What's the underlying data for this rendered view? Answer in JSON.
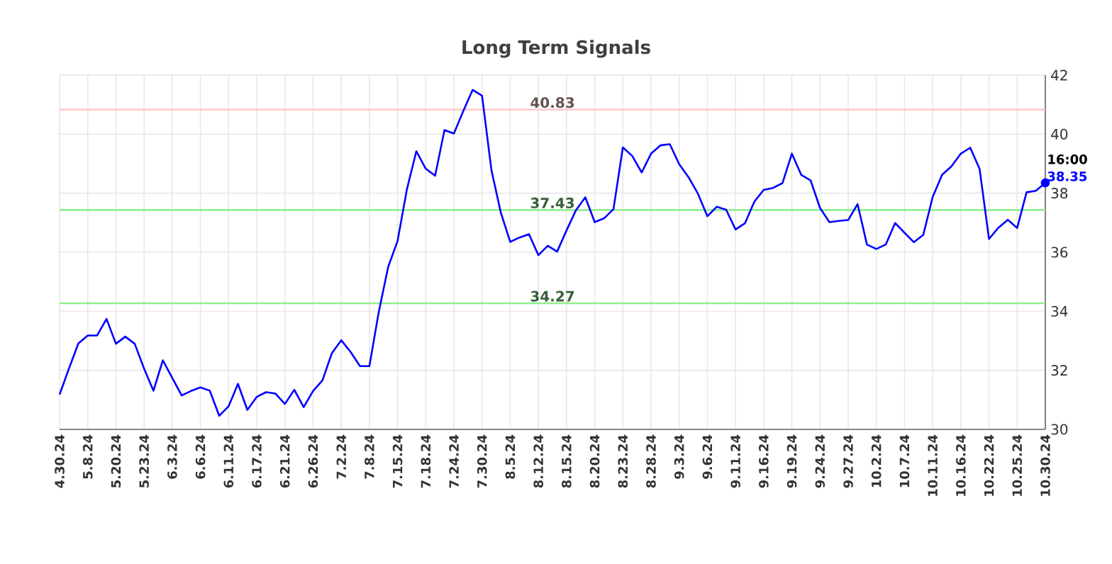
{
  "chart_data": {
    "type": "line",
    "title": "Long Term Signals",
    "categories": [
      "4.30.24",
      null,
      null,
      "5.8.24",
      null,
      null,
      "5.20.24",
      null,
      null,
      "5.23.24",
      null,
      null,
      "6.3.24",
      null,
      null,
      "6.6.24",
      null,
      null,
      "6.11.24",
      null,
      null,
      "6.17.24",
      null,
      null,
      "6.21.24",
      null,
      null,
      "6.26.24",
      null,
      null,
      "7.2.24",
      null,
      null,
      "7.8.24",
      null,
      null,
      "7.15.24",
      null,
      null,
      "7.18.24",
      null,
      null,
      "7.24.24",
      null,
      null,
      "7.30.24",
      null,
      null,
      "8.5.24",
      null,
      null,
      "8.12.24",
      null,
      null,
      "8.15.24",
      null,
      null,
      "8.20.24",
      null,
      null,
      "8.23.24",
      null,
      null,
      "8.28.24",
      null,
      null,
      "9.3.24",
      null,
      null,
      "9.6.24",
      null,
      null,
      "9.11.24",
      null,
      null,
      "9.16.24",
      null,
      null,
      "9.19.24",
      null,
      null,
      "9.24.24",
      null,
      null,
      "9.27.24",
      null,
      null,
      "10.2.24",
      null,
      null,
      "10.7.24",
      null,
      null,
      "10.11.24",
      null,
      null,
      "10.16.24",
      null,
      null,
      "10.22.24",
      null,
      null,
      "10.25.24",
      null,
      null,
      "10.30.24"
    ],
    "series": [
      {
        "color": "#0000ff",
        "values": [
          31.18,
          32.06,
          32.91,
          33.18,
          33.18,
          33.74,
          32.9,
          33.14,
          32.9,
          32.06,
          31.31,
          32.34,
          31.74,
          31.15,
          31.3,
          31.42,
          31.31,
          30.46,
          30.78,
          31.54,
          30.66,
          31.1,
          31.26,
          31.21,
          30.86,
          31.34,
          30.75,
          31.3,
          31.66,
          32.58,
          33.02,
          32.62,
          32.14,
          32.14,
          33.98,
          35.5,
          36.38,
          38.14,
          39.42,
          38.83,
          38.59,
          40.14,
          40.02,
          40.78,
          41.5,
          41.3,
          38.78,
          37.34,
          36.35,
          36.5,
          36.61,
          35.9,
          36.22,
          36.02,
          36.74,
          37.42,
          37.86,
          37.02,
          37.15,
          37.46,
          39.55,
          39.26,
          38.7,
          39.34,
          39.62,
          39.66,
          38.98,
          38.54,
          37.98,
          37.22,
          37.54,
          37.44,
          36.77,
          36.98,
          37.71,
          38.11,
          38.18,
          38.34,
          39.34,
          38.62,
          38.43,
          37.5,
          37.02,
          37.06,
          37.09,
          37.63,
          36.26,
          36.11,
          36.26,
          36.99,
          36.66,
          36.34,
          36.59,
          37.87,
          38.62,
          38.91,
          39.34,
          39.54,
          38.82,
          36.45,
          36.83,
          37.1,
          36.82,
          38.03,
          38.08,
          38.35
        ],
        "value_labels": [
          null,
          null,
          null,
          null,
          null,
          null,
          null,
          null,
          null,
          null,
          null,
          null,
          null,
          null,
          null,
          null,
          null,
          null,
          null,
          null,
          null,
          null,
          null,
          null,
          null,
          null,
          null,
          null,
          null,
          null,
          null,
          null,
          null,
          null,
          null,
          null,
          null,
          null,
          null,
          null,
          null,
          null,
          null,
          null,
          null,
          null,
          null,
          null,
          null,
          null,
          null,
          null,
          null,
          null,
          null,
          null,
          null,
          null,
          null,
          null,
          null,
          null,
          null,
          null,
          null,
          null,
          null,
          null,
          null,
          null,
          null,
          null,
          null,
          null,
          null,
          null,
          null,
          null,
          null,
          null,
          null,
          null,
          null,
          null,
          null,
          null,
          null,
          null,
          null,
          null,
          null,
          null,
          null,
          null,
          null,
          null,
          null,
          null,
          null,
          null,
          null,
          null,
          null,
          null,
          null,
          "38.35"
        ]
      }
    ],
    "annotations": [
      {
        "text": "16:00",
        "x": "10.30.24",
        "y": 38.35
      }
    ],
    "ylim": [
      30,
      42
    ],
    "yticks": [
      30,
      32,
      34,
      36,
      38,
      40,
      42
    ],
    "grid": true,
    "ref_lines": [
      {
        "axis": "y",
        "value": 40.83,
        "label": "40.83",
        "color": "#ffc8c8"
      },
      {
        "axis": "y",
        "value": 37.43,
        "label": "37.43",
        "color": "#90ee90"
      },
      {
        "axis": "y",
        "value": 34.27,
        "label": "34.27",
        "color": "#90ee90"
      }
    ]
  }
}
